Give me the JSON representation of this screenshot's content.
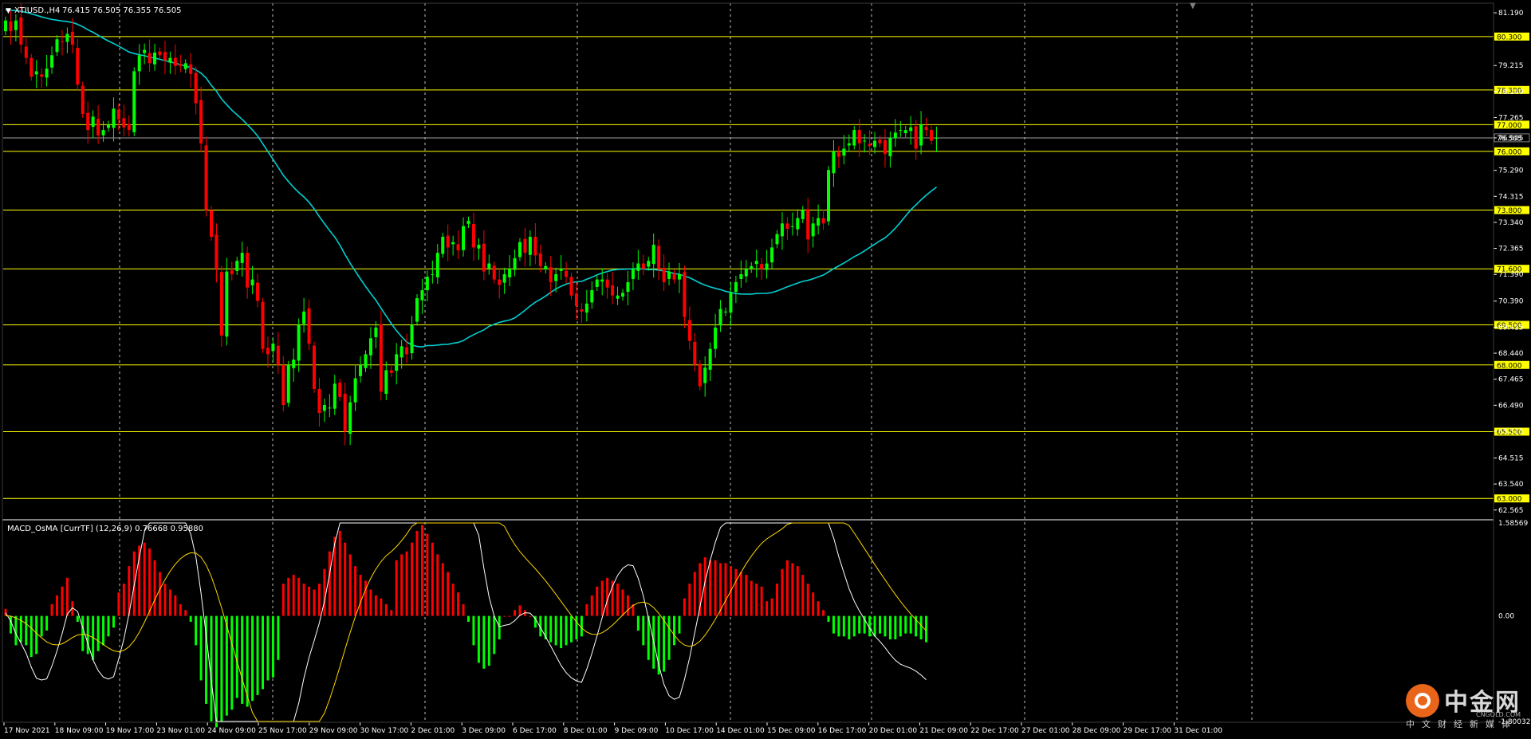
{
  "header": {
    "symbol": "XTIUSD.,H4",
    "ohlc": "76.415 76.505 76.355 76.505"
  },
  "indicator": {
    "label": "MACD_OsMA [CurrTF] (12,26,9) 0.76668 0.95880",
    "scale_top": "1.58569",
    "scale_zero": "0.00",
    "scale_bottom": "-1.80032"
  },
  "colors": {
    "background": "#000000",
    "candle_up": "#00ff00",
    "candle_down": "#ff0000",
    "level_line": "#ffff00",
    "ma_line": "#00ced1",
    "macd_line": "#ffffff",
    "signal_line": "#ffd700",
    "grid": "#ffffff"
  },
  "watermark": {
    "brand": "中金网",
    "sub": "中文财经新媒体",
    "url": "CNGOLD.COM"
  },
  "chart_data": {
    "type": "candlestick",
    "price_axis_ticks": [
      "81.190",
      "79.215",
      "78.240",
      "77.265",
      "76.505",
      "75.290",
      "74.315",
      "73.340",
      "72.365",
      "71.390",
      "70.390",
      "69.415",
      "68.440",
      "67.465",
      "66.490",
      "65.515",
      "64.515",
      "63.540",
      "62.565"
    ],
    "levels": [
      80.3,
      78.3,
      77.0,
      76.0,
      73.8,
      71.6,
      69.5,
      68.0,
      65.5,
      63.0
    ],
    "level_labels": [
      "80.300",
      "78.300",
      "77.000",
      "76.000",
      "73.800",
      "71.600",
      "69.500",
      "68.000",
      "65.500",
      "63.000"
    ],
    "current_price": 76.505,
    "current_price_label": "76.505",
    "ylim": [
      62.2,
      81.55
    ],
    "time_labels": [
      "17 Nov 2021",
      "18 Nov 09:00",
      "19 Nov 17:00",
      "23 Nov 01:00",
      "24 Nov 09:00",
      "25 Nov 17:00",
      "29 Nov 09:00",
      "30 Nov 17:00",
      "2 Dec 01:00",
      "3 Dec 09:00",
      "6 Dec 17:00",
      "8 Dec 01:00",
      "9 Dec 09:00",
      "10 Dec 17:00",
      "14 Dec 01:00",
      "15 Dec 09:00",
      "16 Dec 17:00",
      "20 Dec 01:00",
      "21 Dec 09:00",
      "22 Dec 17:00",
      "27 Dec 01:00",
      "28 Dec 09:00",
      "29 Dec 17:00",
      "31 Dec 01:00"
    ],
    "closes": [
      80.9,
      80.5,
      80.9,
      80.0,
      79.5,
      78.8,
      79.0,
      78.8,
      79.1,
      79.6,
      80.2,
      80.1,
      80.4,
      80.0,
      78.5,
      77.4,
      76.8,
      77.3,
      76.6,
      76.8,
      77.0,
      77.6,
      77.2,
      76.9,
      76.8,
      79.0,
      79.6,
      79.8,
      79.3,
      79.7,
      79.6,
      79.4,
      79.5,
      79.2,
      79.2,
      79.3,
      78.9,
      77.8,
      76.3,
      73.8,
      72.8,
      71.6,
      69.1,
      71.5,
      71.4,
      71.9,
      72.2,
      70.9,
      71.2,
      70.4,
      68.6,
      68.4,
      68.8,
      68.0,
      66.5,
      68.0,
      68.2,
      69.5,
      70.0,
      68.8,
      67.1,
      66.2,
      66.5,
      66.4,
      67.3,
      66.8,
      65.5,
      66.6,
      67.5,
      68.0,
      68.4,
      69.0,
      69.4,
      67.0,
      67.8,
      67.7,
      68.4,
      68.7,
      68.4,
      69.5,
      70.5,
      70.8,
      71.3,
      71.4,
      72.2,
      72.8,
      72.4,
      72.6,
      72.3,
      73.2,
      73.4,
      72.4,
      72.5,
      71.5,
      71.8,
      71.2,
      71.0,
      71.4,
      71.6,
      72.0,
      72.6,
      72.2,
      72.8,
      72.1,
      71.7,
      71.7,
      71.1,
      71.4,
      71.6,
      71.3,
      70.6,
      70.2,
      70.0,
      70.3,
      70.8,
      71.2,
      71.2,
      70.9,
      70.6,
      70.6,
      70.7,
      71.1,
      71.6,
      71.8,
      71.6,
      71.9,
      72.5,
      71.6,
      71.1,
      71.5,
      71.2,
      71.4,
      69.8,
      68.9,
      68.0,
      67.2,
      67.9,
      68.6,
      69.4,
      70.1,
      70.0,
      70.7,
      71.1,
      71.4,
      71.6,
      71.7,
      71.9,
      71.6,
      71.8,
      72.4,
      72.9,
      73.3,
      73.1,
      73.2,
      73.5,
      73.8,
      72.7,
      73.3,
      73.5,
      73.3,
      75.3,
      76.0,
      75.8,
      76.1,
      76.3,
      76.8,
      76.3,
      76.4,
      76.2,
      76.4,
      76.3,
      75.9,
      76.5,
      76.7,
      76.8,
      76.8,
      76.9,
      76.1,
      77.0,
      76.8,
      76.4,
      76.505
    ],
    "histogram": [
      0.12,
      -0.3,
      -0.5,
      -0.45,
      -0.5,
      -0.7,
      -0.65,
      -0.35,
      -0.25,
      0.2,
      0.35,
      0.5,
      0.65,
      0.25,
      -0.1,
      -0.6,
      -0.65,
      -0.75,
      -0.6,
      -0.5,
      -0.35,
      -0.2,
      0.4,
      0.55,
      0.85,
      1.1,
      1.2,
      1.25,
      1.15,
      0.95,
      0.75,
      0.55,
      0.45,
      0.35,
      0.2,
      0.1,
      -0.1,
      -0.5,
      -1.1,
      -1.5,
      -1.8,
      -1.9,
      -1.8,
      -1.7,
      -1.6,
      -1.4,
      -1.5,
      -1.55,
      -1.45,
      -1.35,
      -1.25,
      -1.1,
      -1.05,
      -0.75,
      0.55,
      0.65,
      0.7,
      0.65,
      0.55,
      0.5,
      0.45,
      0.55,
      0.8,
      1.1,
      1.35,
      1.45,
      1.25,
      1.05,
      0.85,
      0.7,
      0.6,
      0.45,
      0.35,
      0.3,
      0.2,
      0.1,
      0.95,
      1.05,
      1.1,
      1.25,
      1.45,
      1.55,
      1.4,
      1.25,
      1.05,
      0.9,
      0.75,
      0.55,
      0.4,
      0.2,
      -0.1,
      -0.5,
      -0.8,
      -0.9,
      -0.85,
      -0.65,
      -0.4,
      0.0,
      0.0,
      0.1,
      0.18,
      0.1,
      0.0,
      -0.2,
      -0.35,
      -0.4,
      -0.45,
      -0.5,
      -0.55,
      -0.5,
      -0.45,
      -0.4,
      -0.35,
      0.2,
      0.35,
      0.5,
      0.6,
      0.65,
      0.6,
      0.55,
      0.45,
      0.35,
      0.2,
      -0.25,
      -0.5,
      -0.75,
      -0.9,
      -1.0,
      -0.95,
      -0.75,
      -0.5,
      -0.3,
      0.3,
      0.55,
      0.75,
      0.9,
      1.0,
      0.95,
      0.95,
      0.9,
      0.9,
      0.85,
      0.8,
      0.75,
      0.7,
      0.6,
      0.55,
      0.5,
      0.25,
      0.3,
      0.55,
      0.8,
      0.95,
      0.9,
      0.85,
      0.7,
      0.55,
      0.4,
      0.25,
      0.1,
      -0.1,
      -0.3,
      -0.35,
      -0.35,
      -0.4,
      -0.35,
      -0.3,
      -0.3,
      -0.35,
      -0.35,
      -0.3,
      -0.35,
      -0.4,
      -0.4,
      -0.35,
      -0.3,
      -0.3,
      -0.35,
      -0.4,
      -0.45
    ]
  }
}
